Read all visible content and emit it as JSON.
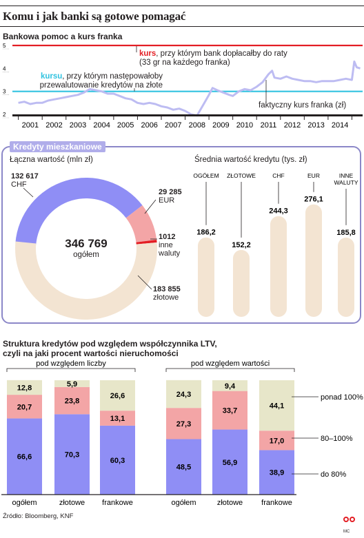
{
  "title": "Komu i jak banki są gotowe pomagać",
  "source": "Źródło: Bloomberg, KNF",
  "footer_logo_text": "MC",
  "colors": {
    "purple": "#8f8ef5",
    "pink": "#f3a5a6",
    "beige": "#f3e4d2",
    "olive": "#e7e6c9",
    "red": "#e31e24",
    "cyan": "#31c3e0",
    "line": "#bdbcf2",
    "panel_border": "#8b87c8",
    "panel_label_bg": "#b0adea"
  },
  "section1": {
    "title": "Bankowa pomoc a kurs franka",
    "red_note_bold": "kurs",
    "red_note": ", przy którym bank dopłacałby do raty",
    "red_note2": "(33 gr na każdego franka)",
    "cyan_note_bold": "kursu",
    "cyan_note": ", przy którym następowałoby",
    "cyan_note2": "przewalutowanie kredytów na złote",
    "actual_label": "faktyczny kurs franka (zł)"
  },
  "section2": {
    "panel_label": "Kredyty mieszkaniowe",
    "donut_title": "Łączna wartość (mln zł)",
    "total_value": "346 769",
    "total_label": "ogółem",
    "bars_title": "Średnia wartość kredytu (tys. zł)"
  },
  "section3": {
    "title_line1": "Struktura kredytów pod względem współczynnika LTV,",
    "title_line2": "czyli na jaki procent wartości nieruchomości",
    "group1_label": "pod względem liczby",
    "group2_label": "pod względem wartości",
    "legend": [
      "ponad 100%",
      "80–100%",
      "do 80%"
    ]
  },
  "chart_data": [
    {
      "type": "line",
      "title": "Bankowa pomoc a kurs franka",
      "ylim": [
        2,
        5
      ],
      "y_ticks": [
        "5",
        "4",
        "3",
        "2"
      ],
      "x_ticks": [
        "2001",
        "2002",
        "2003",
        "2004",
        "2005",
        "2006",
        "2007",
        "2008",
        "2009",
        "2010",
        "2011",
        "2012",
        "2013",
        "2014"
      ],
      "reference_lines": [
        {
          "name": "kurs, przy którym bank dopłacałby do raty",
          "value": 5.0,
          "color": "#e31e24"
        },
        {
          "name": "kurs, przy którym następowałoby przewalutowanie kredytów na złote",
          "value": 3.0,
          "color": "#31c3e0"
        }
      ],
      "series": [
        {
          "name": "faktyczny kurs franka (zł)",
          "x": [
            2001.0,
            2001.25,
            2001.5,
            2001.75,
            2002.0,
            2002.25,
            2002.5,
            2002.75,
            2003.0,
            2003.25,
            2003.5,
            2003.75,
            2004.0,
            2004.25,
            2004.5,
            2004.75,
            2005.0,
            2005.25,
            2005.5,
            2005.75,
            2006.0,
            2006.25,
            2006.5,
            2006.75,
            2007.0,
            2007.25,
            2007.5,
            2007.75,
            2008.0,
            2008.25,
            2008.5,
            2008.75,
            2009.0,
            2009.15,
            2009.35,
            2009.6,
            2009.85,
            2010.0,
            2010.25,
            2010.5,
            2010.75,
            2011.0,
            2011.25,
            2011.5,
            2011.65,
            2011.75,
            2012.0,
            2012.25,
            2012.5,
            2012.75,
            2013.0,
            2013.25,
            2013.5,
            2013.75,
            2014.0,
            2014.25,
            2014.5,
            2014.75,
            2015.0,
            2015.1,
            2015.2,
            2015.35
          ],
          "values": [
            2.5,
            2.55,
            2.45,
            2.5,
            2.5,
            2.6,
            2.65,
            2.7,
            2.75,
            2.8,
            2.85,
            2.95,
            3.1,
            3.05,
            3.0,
            2.9,
            2.9,
            2.8,
            2.7,
            2.65,
            2.5,
            2.45,
            2.5,
            2.45,
            2.35,
            2.3,
            2.2,
            2.25,
            2.15,
            2.0,
            1.95,
            2.4,
            2.85,
            3.15,
            3.05,
            2.95,
            2.85,
            2.8,
            3.0,
            3.1,
            3.05,
            3.2,
            3.4,
            3.75,
            3.9,
            3.6,
            3.55,
            3.65,
            3.55,
            3.5,
            3.45,
            3.45,
            3.4,
            3.45,
            3.45,
            3.45,
            3.5,
            3.55,
            3.5,
            4.3,
            4.05,
            4.0
          ]
        }
      ]
    },
    {
      "type": "pie",
      "title": "Łączna wartość (mln zł)",
      "total": "346 769",
      "total_label": "ogółem",
      "slices": [
        {
          "label": "CHF",
          "value_text": "132 617",
          "value": 132617,
          "color": "#8f8ef5"
        },
        {
          "label": "EUR",
          "value_text": "29 285",
          "value": 29285,
          "color": "#f3a5a6"
        },
        {
          "label": "inne waluty",
          "value_text": "1012",
          "value": 1012,
          "color": "#e31e24"
        },
        {
          "label": "złotowe",
          "value_text": "183 855",
          "value": 183855,
          "color": "#f3e4d2"
        }
      ]
    },
    {
      "type": "bar",
      "title": "Średnia wartość kredytu (tys. zł)",
      "categories": [
        "OGÓŁEM",
        "ZŁOTOWE",
        "CHF",
        "EUR",
        "INNE WALUTY"
      ],
      "values": [
        186.2,
        152.2,
        244.3,
        276.1,
        185.8
      ],
      "labels": [
        "186,2",
        "152,2",
        "244,3",
        "276,1",
        "185,8"
      ]
    },
    {
      "type": "bar",
      "stacked": true,
      "title": "Struktura kredytów pod względem współczynnika LTV, czyli na jaki procent wartości nieruchomości",
      "groups": [
        "pod względem liczby",
        "pod względem wartości"
      ],
      "categories": [
        "ogółem",
        "złotowe",
        "frankowe",
        "ogółem",
        "złotowe",
        "frankowe"
      ],
      "series": [
        {
          "name": "do 80%",
          "values": [
            66.6,
            70.3,
            60.3,
            48.5,
            56.9,
            38.9
          ],
          "labels": [
            "66,6",
            "70,3",
            "60,3",
            "48,5",
            "56,9",
            "38,9"
          ]
        },
        {
          "name": "80–100%",
          "values": [
            20.7,
            23.8,
            13.1,
            27.3,
            33.7,
            17.0
          ],
          "labels": [
            "20,7",
            "23,8",
            "13,1",
            "27,3",
            "33,7",
            "17,0"
          ]
        },
        {
          "name": "ponad 100%",
          "values": [
            12.8,
            5.9,
            26.6,
            24.3,
            9.4,
            44.1
          ],
          "labels": [
            "12,8",
            "5,9",
            "26,6",
            "24,3",
            "9,4",
            "44,1"
          ]
        }
      ]
    }
  ]
}
